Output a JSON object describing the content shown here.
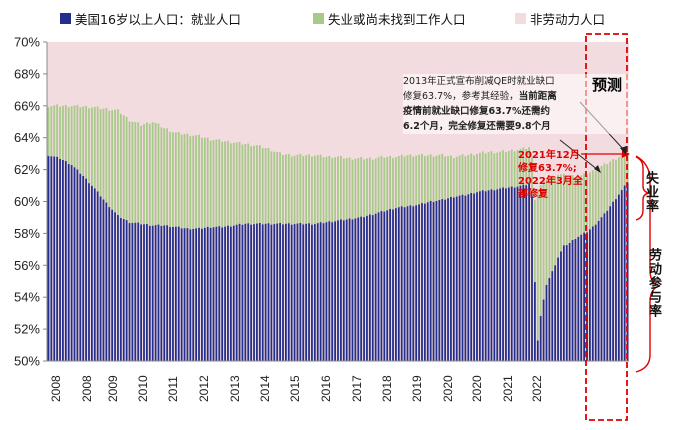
{
  "legend": [
    {
      "label": "美国16岁以上人口：就业人口",
      "color": "#232F8A"
    },
    {
      "label": "失业或尚未找到工作人口",
      "color": "#A8C98A"
    },
    {
      "label": "非劳动力人口",
      "color": "#F3DCE0"
    }
  ],
  "annotations": {
    "note_line1": "2013年正式宣布削减QE时就业缺口",
    "note_line2_plain": "修复63.7%，参考其经验，",
    "note_line2_bold": "当前距离",
    "note_line3_bold": "疫情前就业缺口修复63.7%还需约",
    "note_line4_bold": "6.2个月，完全修复还需要9.8个月",
    "red_line1": "2021年12月",
    "red_line2": "修复63.7%;",
    "red_line3": "2022年3月全",
    "red_line4": "部修复",
    "forecast_label": "预测",
    "unemployment_label": "失业率",
    "participation_label": "劳动参与率"
  },
  "chart_data": {
    "type": "bar",
    "stacked": true,
    "title": "",
    "ylabel": "",
    "xlabel": "",
    "ylim": [
      50,
      70
    ],
    "yticks": [
      "50%",
      "52%",
      "54%",
      "56%",
      "58%",
      "60%",
      "62%",
      "64%",
      "66%",
      "68%",
      "70%"
    ],
    "ytick_values": [
      50,
      52,
      54,
      56,
      58,
      60,
      62,
      64,
      66,
      68,
      70
    ],
    "x_tick_labels": [
      "2008",
      "2008",
      "2009",
      "2010",
      "2011",
      "2012",
      "2013",
      "2014",
      "2015",
      "2016",
      "2017",
      "2018",
      "2019",
      "2020",
      "2020",
      "2021",
      "2022"
    ],
    "forecast_start_label": "2021",
    "series_anchors": {
      "employment": [
        [
          0,
          62.9
        ],
        [
          4,
          62.7
        ],
        [
          8,
          62.3
        ],
        [
          12,
          61.6
        ],
        [
          16,
          60.8
        ],
        [
          20,
          59.9
        ],
        [
          24,
          59.1
        ],
        [
          28,
          58.7
        ],
        [
          32,
          58.6
        ],
        [
          36,
          58.5
        ],
        [
          40,
          58.5
        ],
        [
          44,
          58.4
        ],
        [
          48,
          58.3
        ],
        [
          52,
          58.3
        ],
        [
          56,
          58.4
        ],
        [
          60,
          58.4
        ],
        [
          64,
          58.5
        ],
        [
          68,
          58.6
        ],
        [
          72,
          58.6
        ],
        [
          76,
          58.6
        ],
        [
          80,
          58.6
        ],
        [
          84,
          58.6
        ],
        [
          88,
          58.6
        ],
        [
          92,
          58.6
        ],
        [
          96,
          58.7
        ],
        [
          100,
          58.8
        ],
        [
          104,
          58.9
        ],
        [
          108,
          59.0
        ],
        [
          112,
          59.2
        ],
        [
          116,
          59.4
        ],
        [
          120,
          59.6
        ],
        [
          124,
          59.7
        ],
        [
          128,
          59.8
        ],
        [
          132,
          60.0
        ],
        [
          136,
          60.1
        ],
        [
          140,
          60.3
        ],
        [
          144,
          60.4
        ],
        [
          148,
          60.6
        ],
        [
          152,
          60.7
        ],
        [
          156,
          60.8
        ],
        [
          160,
          60.9
        ],
        [
          164,
          61.0
        ],
        [
          166,
          61.1
        ],
        [
          167,
          60.3
        ],
        [
          168,
          55.0
        ],
        [
          169,
          51.3
        ],
        [
          170,
          52.8
        ],
        [
          172,
          54.8
        ],
        [
          174,
          55.6
        ],
        [
          176,
          56.5
        ],
        [
          178,
          57.2
        ],
        [
          180,
          57.4
        ],
        [
          182,
          57.7
        ],
        [
          184,
          57.9
        ],
        [
          186,
          58.1
        ],
        [
          188,
          58.4
        ],
        [
          190,
          58.8
        ],
        [
          192,
          59.2
        ],
        [
          194,
          59.7
        ],
        [
          196,
          60.2
        ],
        [
          198,
          60.7
        ],
        [
          200,
          61.2
        ]
      ],
      "labor_force": [
        [
          0,
          66.0
        ],
        [
          8,
          66.0
        ],
        [
          16,
          65.9
        ],
        [
          24,
          65.7
        ],
        [
          28,
          65.1
        ],
        [
          32,
          64.8
        ],
        [
          36,
          65.0
        ],
        [
          40,
          64.6
        ],
        [
          44,
          64.3
        ],
        [
          48,
          64.2
        ],
        [
          52,
          64.1
        ],
        [
          56,
          63.9
        ],
        [
          60,
          63.8
        ],
        [
          64,
          63.7
        ],
        [
          68,
          63.6
        ],
        [
          72,
          63.5
        ],
        [
          76,
          63.3
        ],
        [
          80,
          63.0
        ],
        [
          84,
          62.9
        ],
        [
          88,
          62.9
        ],
        [
          92,
          62.9
        ],
        [
          96,
          62.8
        ],
        [
          100,
          62.8
        ],
        [
          104,
          62.7
        ],
        [
          108,
          62.7
        ],
        [
          112,
          62.7
        ],
        [
          116,
          62.8
        ],
        [
          120,
          62.8
        ],
        [
          124,
          62.9
        ],
        [
          128,
          62.9
        ],
        [
          132,
          62.9
        ],
        [
          136,
          62.9
        ],
        [
          140,
          62.8
        ],
        [
          144,
          62.9
        ],
        [
          148,
          63.0
        ],
        [
          152,
          63.1
        ],
        [
          156,
          63.1
        ],
        [
          160,
          63.2
        ],
        [
          164,
          63.3
        ],
        [
          166,
          63.4
        ],
        [
          167,
          62.7
        ],
        [
          168,
          60.2
        ],
        [
          169,
          60.8
        ],
        [
          172,
          61.4
        ],
        [
          176,
          61.7
        ],
        [
          180,
          61.6
        ],
        [
          184,
          61.6
        ],
        [
          188,
          61.9
        ],
        [
          192,
          62.3
        ],
        [
          196,
          62.7
        ],
        [
          200,
          63.1
        ]
      ]
    },
    "n_bars": 201
  }
}
